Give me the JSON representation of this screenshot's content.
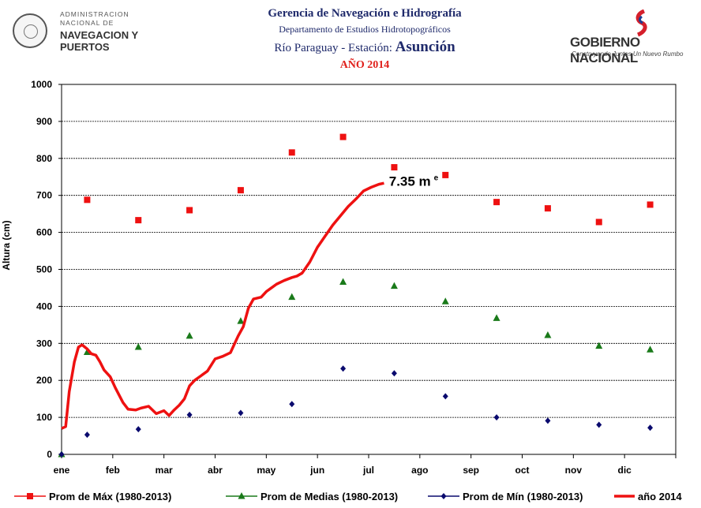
{
  "header": {
    "line1": "Gerencia de Navegación e Hidrografía",
    "line2": "Departamento  de Estudios Hidrotopográficos",
    "line3_prefix": "Río Paraguay -  Estación: ",
    "line3_station": "Asunción",
    "line4": "AÑO 2014",
    "org_line1": "ADMINISTRACION",
    "org_line2": "NACIONAL DE",
    "org_line3": "NAVEGACION Y",
    "org_line4": "PUERTOS",
    "gov_title": "GOBIERNO NACIONAL",
    "gov_slogan": "Construyendo Juntos Un Nuevo Rumbo"
  },
  "chart_data": {
    "type": "line",
    "title": "",
    "xlabel": "",
    "ylabel": "Altura (cm)",
    "ylim": [
      0,
      1000
    ],
    "yticks": [
      0,
      100,
      200,
      300,
      400,
      500,
      600,
      700,
      800,
      900,
      1000
    ],
    "xlim": [
      0,
      12
    ],
    "categories": [
      "ene",
      "feb",
      "mar",
      "abr",
      "may",
      "jun",
      "jul",
      "ago",
      "sep",
      "oct",
      "nov",
      "dic"
    ],
    "grid": true,
    "legend_position": "bottom",
    "annotation": {
      "text": "7.35 m",
      "superscript": "e",
      "x": 6.32,
      "y": 735
    },
    "series": [
      {
        "name": "Prom de Máx   (1980-2013)",
        "marker": "square",
        "color": "#ee1111",
        "x": [
          0.5,
          1.5,
          2.5,
          3.5,
          4.5,
          5.5,
          6.5,
          7.5,
          8.5,
          9.5,
          10.5,
          11.5
        ],
        "y": [
          688,
          633,
          660,
          714,
          816,
          858,
          776,
          755,
          682,
          665,
          628,
          675
        ]
      },
      {
        "name": "Prom de Medias   (1980-2013)",
        "marker": "triangle",
        "color": "#1a7a1a",
        "x": [
          0,
          0.5,
          1.5,
          2.5,
          3.5,
          4.5,
          5.5,
          6.5,
          7.5,
          8.5,
          9.5,
          10.5,
          11.5
        ],
        "y": [
          0,
          276,
          290,
          320,
          360,
          425,
          466,
          455,
          413,
          368,
          322,
          293,
          283
        ]
      },
      {
        "name": "Prom de Mín   (1980-2013)",
        "marker": "diamond",
        "color": "#0a0a6e",
        "x": [
          0,
          0.5,
          1.5,
          2.5,
          3.5,
          4.5,
          5.5,
          6.5,
          7.5,
          8.5,
          9.5,
          10.5,
          11.5
        ],
        "y": [
          0,
          53,
          68,
          107,
          112,
          136,
          232,
          219,
          157,
          100,
          91,
          80,
          72
        ]
      },
      {
        "name": "año 2014",
        "marker": "line",
        "color": "#ee1111",
        "x": [
          0,
          0.08,
          0.15,
          0.25,
          0.33,
          0.4,
          0.5,
          0.58,
          0.67,
          0.75,
          0.83,
          0.95,
          1.05,
          1.2,
          1.3,
          1.45,
          1.55,
          1.7,
          1.85,
          2.0,
          2.1,
          2.2,
          2.3,
          2.4,
          2.5,
          2.6,
          2.7,
          2.85,
          3.0,
          3.15,
          3.3,
          3.45,
          3.55,
          3.65,
          3.75,
          3.9,
          4.0,
          4.1,
          4.2,
          4.35,
          4.5,
          4.6,
          4.7,
          4.85,
          5.0,
          5.15,
          5.3,
          5.45,
          5.6,
          5.75,
          5.9,
          6.05,
          6.2,
          6.3
        ],
        "y": [
          70,
          75,
          170,
          250,
          290,
          296,
          285,
          272,
          268,
          250,
          228,
          210,
          180,
          140,
          122,
          120,
          125,
          130,
          110,
          118,
          105,
          120,
          133,
          150,
          185,
          200,
          210,
          225,
          258,
          265,
          275,
          320,
          345,
          395,
          420,
          425,
          440,
          450,
          460,
          470,
          478,
          482,
          490,
          520,
          560,
          590,
          620,
          645,
          670,
          690,
          712,
          722,
          730,
          733
        ]
      }
    ]
  }
}
